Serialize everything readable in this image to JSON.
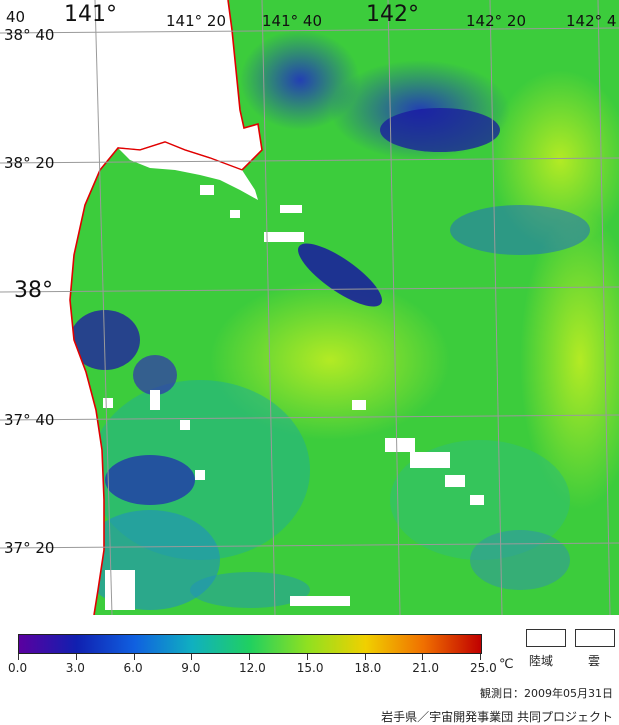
{
  "map": {
    "lon_labels": [
      "141°",
      "141° 20",
      "141° 40",
      "142°",
      "142° 20",
      "142° 4"
    ],
    "lat_labels": [
      "38° 40",
      "38° 20",
      "38°",
      "37° 40",
      "37° 20"
    ],
    "corner_label": "40",
    "land_color": "#ffffff",
    "coast_color": "#e00000",
    "grid_color": "#9a9a9a"
  },
  "legend": {
    "ticks": [
      "0.0",
      "3.0",
      "6.0",
      "9.0",
      "12.0",
      "15.0",
      "18.0",
      "21.0",
      "25.0"
    ],
    "unit": "℃",
    "colors": [
      "#5a00a0",
      "#1020b0",
      "#1060e0",
      "#10b0c0",
      "#20d060",
      "#90e020",
      "#f0d000",
      "#f07000",
      "#c00000"
    ],
    "land_label": "陸域",
    "cloud_label": "雲"
  },
  "footer": {
    "observation_date": "観測日：2009年05月31日",
    "credit": "岩手県／宇宙開発事業団  共同プロジェクト"
  }
}
